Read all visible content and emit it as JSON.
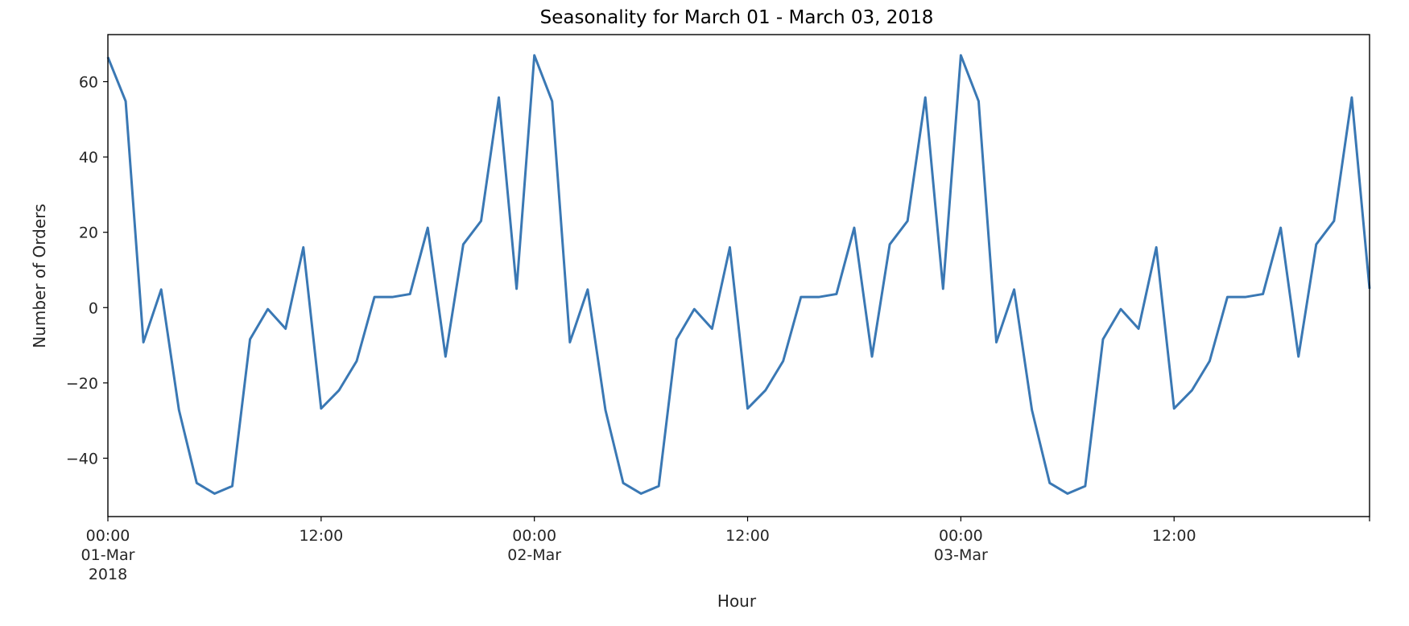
{
  "chart_data": {
    "type": "line",
    "title": "Seasonality for March 01 - March 03, 2018",
    "xlabel": "Hour",
    "ylabel": "Number of Orders",
    "grid": false,
    "legend": "none",
    "ylim": [
      -55.5,
      72.5
    ],
    "xlim": [
      "2018-03-01 00:00",
      "2018-03-03 23:00"
    ],
    "x_ticks": [
      {
        "x": "2018-03-01 00:00",
        "label": [
          "00:00",
          "01-Mar",
          "2018"
        ]
      },
      {
        "x": "2018-03-01 12:00",
        "label": [
          "12:00"
        ]
      },
      {
        "x": "2018-03-02 00:00",
        "label": [
          "00:00",
          "02-Mar"
        ]
      },
      {
        "x": "2018-03-02 12:00",
        "label": [
          "12:00"
        ]
      },
      {
        "x": "2018-03-03 00:00",
        "label": [
          "00:00",
          "03-Mar"
        ]
      },
      {
        "x": "2018-03-03 12:00",
        "label": [
          "12:00"
        ]
      }
    ],
    "y_ticks": [
      {
        "value": -40,
        "label": "−40"
      },
      {
        "value": -20,
        "label": "−20"
      },
      {
        "value": 0,
        "label": "0"
      },
      {
        "value": 20,
        "label": "20"
      },
      {
        "value": 40,
        "label": "40"
      },
      {
        "value": 60,
        "label": "60"
      }
    ],
    "series": [
      {
        "color": "#3a78b4",
        "x": [
          "2018-03-01 00:00",
          "2018-03-01 01:00",
          "2018-03-01 02:00",
          "2018-03-01 03:00",
          "2018-03-01 04:00",
          "2018-03-01 05:00",
          "2018-03-01 06:00",
          "2018-03-01 07:00",
          "2018-03-01 08:00",
          "2018-03-01 09:00",
          "2018-03-01 10:00",
          "2018-03-01 11:00",
          "2018-03-01 12:00",
          "2018-03-01 13:00",
          "2018-03-01 14:00",
          "2018-03-01 15:00",
          "2018-03-01 16:00",
          "2018-03-01 17:00",
          "2018-03-01 18:00",
          "2018-03-01 19:00",
          "2018-03-01 20:00",
          "2018-03-01 21:00",
          "2018-03-01 22:00",
          "2018-03-01 23:00",
          "2018-03-02 00:00",
          "2018-03-02 01:00",
          "2018-03-02 02:00",
          "2018-03-02 03:00",
          "2018-03-02 04:00",
          "2018-03-02 05:00",
          "2018-03-02 06:00",
          "2018-03-02 07:00",
          "2018-03-02 08:00",
          "2018-03-02 09:00",
          "2018-03-02 10:00",
          "2018-03-02 11:00",
          "2018-03-02 12:00",
          "2018-03-02 13:00",
          "2018-03-02 14:00",
          "2018-03-02 15:00",
          "2018-03-02 16:00",
          "2018-03-02 17:00",
          "2018-03-02 18:00",
          "2018-03-02 19:00",
          "2018-03-02 20:00",
          "2018-03-02 21:00",
          "2018-03-02 22:00",
          "2018-03-02 23:00",
          "2018-03-03 00:00",
          "2018-03-03 01:00",
          "2018-03-03 02:00",
          "2018-03-03 03:00",
          "2018-03-03 04:00",
          "2018-03-03 05:00",
          "2018-03-03 06:00",
          "2018-03-03 07:00",
          "2018-03-03 08:00",
          "2018-03-03 09:00",
          "2018-03-03 10:00",
          "2018-03-03 11:00",
          "2018-03-03 12:00",
          "2018-03-03 13:00",
          "2018-03-03 14:00",
          "2018-03-03 15:00",
          "2018-03-03 16:00",
          "2018-03-03 17:00",
          "2018-03-03 18:00",
          "2018-03-03 19:00",
          "2018-03-03 20:00",
          "2018-03-03 21:00",
          "2018-03-03 22:00",
          "2018-03-03 23:00"
        ],
        "values": [
          66.5,
          54.8,
          -9.2,
          4.8,
          -27.2,
          -46.6,
          -49.4,
          -47.4,
          -8.4,
          -0.4,
          -5.6,
          16.0,
          -26.8,
          -22.0,
          -14.2,
          2.8,
          2.8,
          3.6,
          21.2,
          -13.0,
          16.8,
          23.0,
          55.8,
          5.0,
          67.0,
          54.8,
          -9.2,
          4.8,
          -27.2,
          -46.6,
          -49.4,
          -47.4,
          -8.4,
          -0.4,
          -5.6,
          16.0,
          -26.8,
          -22.0,
          -14.2,
          2.8,
          2.8,
          3.6,
          21.2,
          -13.0,
          16.8,
          23.0,
          55.8,
          5.0,
          67.0,
          54.8,
          -9.2,
          4.8,
          -27.2,
          -46.6,
          -49.4,
          -47.4,
          -8.4,
          -0.4,
          -5.6,
          16.0,
          -26.8,
          -22.0,
          -14.2,
          2.8,
          2.8,
          3.6,
          21.2,
          -13.0,
          16.8,
          23.0,
          55.8,
          5.0
        ]
      }
    ]
  }
}
